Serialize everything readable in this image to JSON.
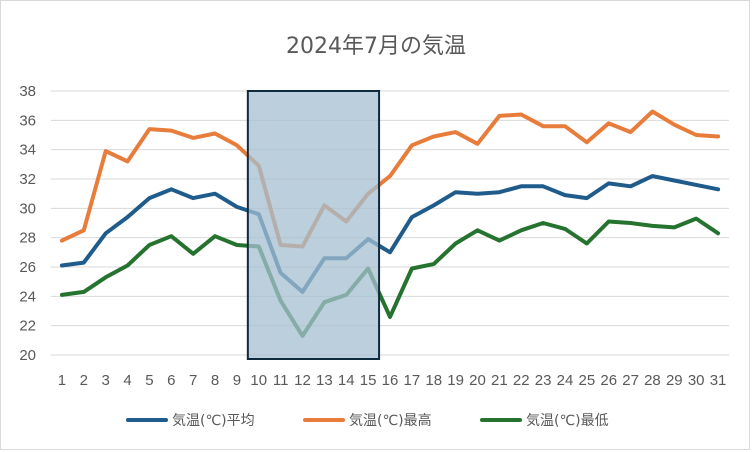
{
  "chart_data": {
    "type": "line",
    "title": "2024年7月の気温",
    "x": [
      1,
      2,
      3,
      4,
      5,
      6,
      7,
      8,
      9,
      10,
      11,
      12,
      13,
      14,
      15,
      16,
      17,
      18,
      19,
      20,
      21,
      22,
      23,
      24,
      25,
      26,
      27,
      28,
      29,
      30,
      31
    ],
    "ylim": [
      20,
      38
    ],
    "yticks": [
      20,
      22,
      24,
      26,
      28,
      30,
      32,
      34,
      36,
      38
    ],
    "grid": "horizontal",
    "legend_position": "bottom",
    "highlight_x_range": [
      10,
      15
    ],
    "series": [
      {
        "name": "気温(℃)平均",
        "color": "#1f5c8b",
        "values": [
          26.1,
          26.3,
          28.3,
          29.4,
          30.7,
          31.3,
          30.7,
          31.0,
          30.1,
          29.6,
          25.6,
          24.3,
          26.6,
          26.6,
          27.9,
          27.0,
          29.4,
          30.2,
          31.1,
          31.0,
          31.1,
          31.5,
          31.5,
          30.9,
          30.7,
          31.7,
          31.5,
          32.2,
          31.9,
          31.6,
          31.3
        ]
      },
      {
        "name": "気温(℃)最高",
        "color": "#e87c3b",
        "values": [
          27.8,
          28.5,
          33.9,
          33.2,
          35.4,
          35.3,
          34.8,
          35.1,
          34.3,
          32.9,
          27.5,
          27.4,
          30.2,
          29.1,
          31.0,
          32.2,
          34.3,
          34.9,
          35.2,
          34.4,
          36.3,
          36.4,
          35.6,
          35.6,
          34.5,
          35.8,
          35.2,
          36.6,
          35.7,
          35.0,
          34.9
        ]
      },
      {
        "name": "気温(℃)最低",
        "color": "#25732f",
        "values": [
          24.1,
          24.3,
          25.3,
          26.1,
          27.5,
          28.1,
          26.9,
          28.1,
          27.5,
          27.4,
          23.7,
          21.3,
          23.6,
          24.1,
          25.9,
          22.6,
          25.9,
          26.2,
          27.6,
          28.5,
          27.8,
          28.5,
          29.0,
          28.6,
          27.6,
          29.1,
          29.0,
          28.8,
          28.7,
          29.3,
          28.3
        ]
      }
    ],
    "colors": {
      "highlight_fill": "#a6bfd0",
      "highlight_border": "#0f2a3d",
      "grid": "#d9d9d9",
      "tick": "#595959"
    }
  }
}
